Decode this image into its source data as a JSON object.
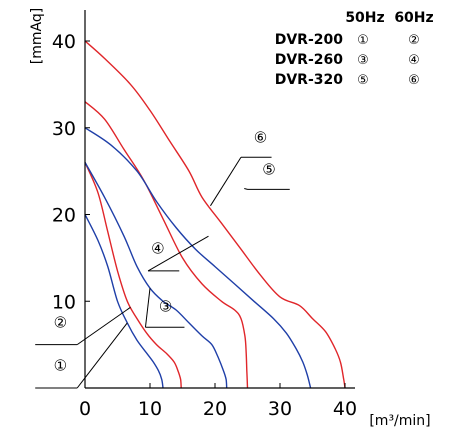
{
  "chart_data": {
    "type": "line",
    "xlabel": "[m³/min]",
    "ylabel": "[mmAq]",
    "xlim": [
      0,
      40
    ],
    "ylim": [
      0,
      45
    ],
    "x_ticks": [
      "0",
      "10",
      "20",
      "30",
      "40"
    ],
    "y_ticks": [
      "10",
      "20",
      "30",
      "40"
    ],
    "grid": false,
    "legend": {
      "position": "top-right",
      "headers": [
        "50Hz",
        "60Hz"
      ],
      "rows": [
        {
          "model": "DVR-200",
          "hz50": "①",
          "hz60": "②"
        },
        {
          "model": "DVR-260",
          "hz50": "③",
          "hz60": "④"
        },
        {
          "model": "DVR-320",
          "hz50": "⑤",
          "hz60": "⑥"
        }
      ]
    },
    "colors": {
      "hz50": "#1f3fa8",
      "hz60": "#e0262a",
      "axis": "#000000"
    },
    "series": [
      {
        "name": "①",
        "hz": "50",
        "points": [
          [
            0,
            20
          ],
          [
            2,
            17
          ],
          [
            3.5,
            14
          ],
          [
            5,
            10
          ],
          [
            6.5,
            7.5
          ],
          [
            8,
            5.5
          ],
          [
            9.5,
            4
          ],
          [
            10.5,
            3
          ],
          [
            11.3,
            2
          ],
          [
            11.8,
            1
          ],
          [
            12,
            0
          ]
        ]
      },
      {
        "name": "②",
        "hz": "60",
        "points": [
          [
            0,
            26
          ],
          [
            2,
            22.5
          ],
          [
            3.5,
            18
          ],
          [
            5,
            13.5
          ],
          [
            6.5,
            10
          ],
          [
            8,
            8
          ],
          [
            9.5,
            6.3
          ],
          [
            11,
            5
          ],
          [
            12.5,
            4
          ],
          [
            13.7,
            3
          ],
          [
            14.3,
            2
          ],
          [
            14.7,
            1
          ],
          [
            14.8,
            0
          ]
        ]
      },
      {
        "name": "③",
        "hz": "50",
        "points": [
          [
            0,
            26
          ],
          [
            3,
            22
          ],
          [
            6,
            17.5
          ],
          [
            8,
            14
          ],
          [
            10,
            11.5
          ],
          [
            12,
            10
          ],
          [
            14,
            9
          ],
          [
            16,
            7.5
          ],
          [
            18,
            6
          ],
          [
            19.5,
            5
          ],
          [
            20.5,
            3.5
          ],
          [
            21.3,
            2
          ],
          [
            21.7,
            1
          ],
          [
            21.8,
            0
          ]
        ]
      },
      {
        "name": "④",
        "hz": "60",
        "points": [
          [
            0,
            33
          ],
          [
            3,
            31
          ],
          [
            6,
            27.5
          ],
          [
            9,
            24
          ],
          [
            12,
            19.5
          ],
          [
            15,
            15
          ],
          [
            18,
            12
          ],
          [
            21,
            10
          ],
          [
            23,
            9
          ],
          [
            24,
            8
          ],
          [
            24.6,
            6
          ],
          [
            24.8,
            4
          ],
          [
            24.9,
            2
          ],
          [
            25,
            0
          ]
        ]
      },
      {
        "name": "⑤",
        "hz": "50",
        "points": [
          [
            0,
            30
          ],
          [
            4,
            28
          ],
          [
            8,
            25
          ],
          [
            11,
            21.5
          ],
          [
            14,
            18.5
          ],
          [
            17,
            16
          ],
          [
            20,
            14
          ],
          [
            23,
            12
          ],
          [
            26,
            10
          ],
          [
            29,
            8
          ],
          [
            31,
            6.3
          ],
          [
            32.5,
            4.5
          ],
          [
            33.5,
            3
          ],
          [
            34.2,
            1.5
          ],
          [
            34.7,
            0
          ]
        ]
      },
      {
        "name": "⑥",
        "hz": "60",
        "points": [
          [
            0,
            40
          ],
          [
            3,
            38
          ],
          [
            7,
            35
          ],
          [
            10,
            32
          ],
          [
            13,
            28.5
          ],
          [
            16,
            25
          ],
          [
            18,
            22
          ],
          [
            21,
            19
          ],
          [
            24,
            16
          ],
          [
            27,
            13
          ],
          [
            30,
            10.5
          ],
          [
            33,
            9.5
          ],
          [
            35,
            8
          ],
          [
            37,
            6.5
          ],
          [
            38.5,
            4.5
          ],
          [
            39.3,
            3
          ],
          [
            39.8,
            1
          ],
          [
            40,
            0
          ]
        ]
      }
    ],
    "callouts": [
      {
        "label": "①",
        "target": [
          6.5,
          7.5
        ],
        "text_at": [
          -3.8,
          2
        ],
        "line_from": [
          -1.2,
          0
        ]
      },
      {
        "label": "②",
        "target": [
          7,
          9.3
        ],
        "text_at": [
          -3.8,
          7
        ],
        "line_from": [
          -1.2,
          5
        ]
      },
      {
        "label": "③",
        "target": [
          10,
          11.5
        ],
        "text_at": [
          12.4,
          8.8
        ],
        "line_from": [
          9.3,
          7
        ],
        "line_to_h": [
          15.3,
          7
        ]
      },
      {
        "label": "④",
        "target": [
          19,
          17.5
        ],
        "text_at": [
          11.2,
          15.5
        ],
        "line_from": [
          9.7,
          13.5
        ],
        "line_to_h": [
          14.5,
          13.5
        ]
      },
      {
        "label": "⑤",
        "target": [
          24.5,
          23
        ],
        "text_at": [
          28.3,
          24.6
        ],
        "line_from": [
          25,
          22.9
        ],
        "line_to_h": [
          31.5,
          22.9
        ]
      },
      {
        "label": "⑥",
        "target": [
          19.3,
          21
        ],
        "text_at": [
          27,
          28.3
        ],
        "line_from": [
          24,
          26.6
        ],
        "line_to_h": [
          28.7,
          26.6
        ]
      }
    ]
  }
}
